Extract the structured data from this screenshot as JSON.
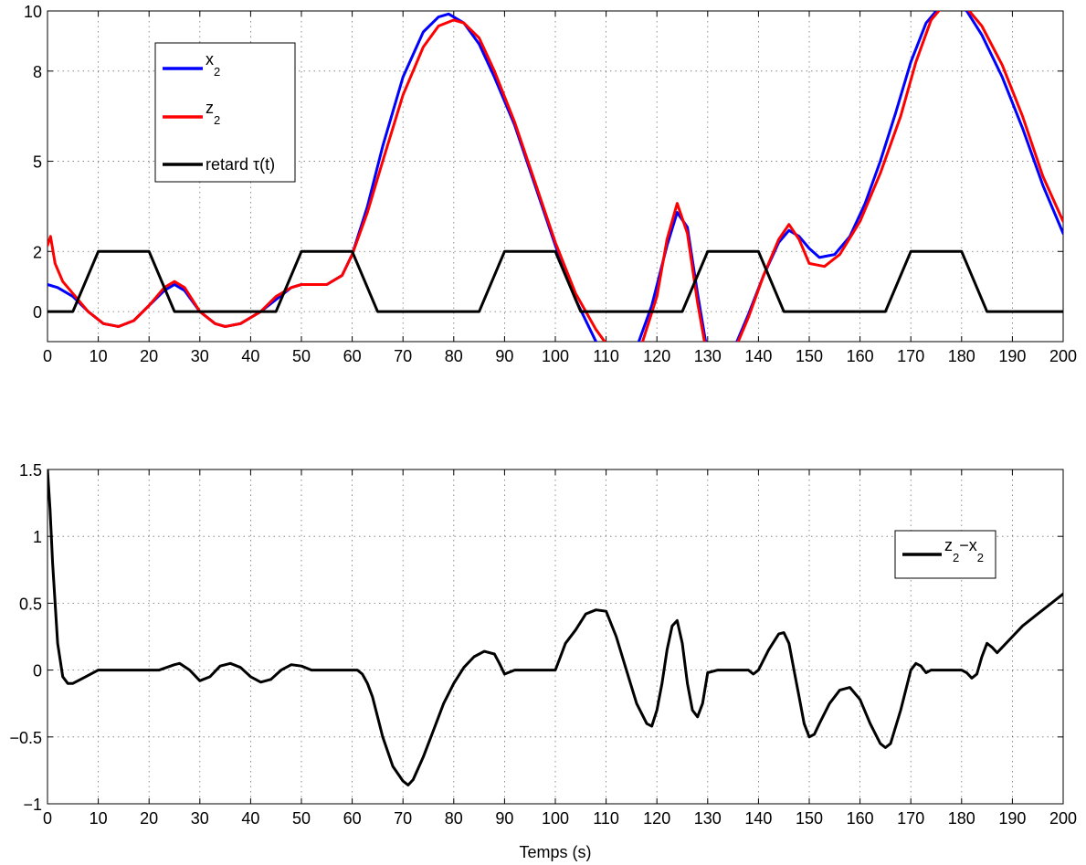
{
  "chart_data": [
    {
      "type": "line",
      "xlim": [
        0,
        200
      ],
      "ylim": [
        -1,
        10
      ],
      "x_ticks": [
        0,
        10,
        20,
        30,
        40,
        50,
        60,
        70,
        80,
        90,
        100,
        110,
        120,
        130,
        140,
        150,
        160,
        170,
        180,
        190,
        200
      ],
      "y_ticks": [
        0,
        2,
        5,
        8,
        10
      ],
      "grid": true,
      "legend_position": "top-left",
      "series": [
        {
          "name": "x_2",
          "label_main": "x",
          "label_sub": "2",
          "color": "#0000ff",
          "x": [
            0,
            2,
            5,
            8,
            11,
            14,
            17,
            20,
            23,
            25,
            27,
            30,
            33,
            35,
            38,
            42,
            45,
            48,
            50,
            55,
            58,
            60,
            63,
            66,
            70,
            74,
            77,
            79,
            82,
            85,
            88,
            92,
            96,
            100,
            104,
            108,
            111,
            113,
            116,
            119,
            122,
            124,
            126,
            128,
            130,
            132,
            135,
            138,
            141,
            144,
            146,
            148,
            150,
            152,
            155,
            158,
            161,
            164,
            167,
            170,
            173,
            176,
            178,
            181,
            184,
            188,
            192,
            196,
            200
          ],
          "y": [
            0.9,
            0.8,
            0.5,
            0.0,
            -0.4,
            -0.5,
            -0.3,
            0.2,
            0.7,
            0.9,
            0.7,
            0.0,
            -0.4,
            -0.5,
            -0.4,
            0.0,
            0.4,
            0.8,
            0.9,
            0.9,
            1.2,
            1.9,
            3.5,
            5.5,
            7.8,
            9.3,
            9.8,
            9.9,
            9.6,
            8.9,
            7.8,
            6.2,
            4.2,
            2.2,
            0.4,
            -1.0,
            -1.7,
            -1.75,
            -1.2,
            0.2,
            2.2,
            3.3,
            2.8,
            0.6,
            -1.4,
            -1.9,
            -1.3,
            -0.1,
            1.2,
            2.3,
            2.7,
            2.5,
            2.1,
            1.8,
            1.9,
            2.5,
            3.6,
            5.0,
            6.6,
            8.3,
            9.6,
            10.2,
            10.3,
            10.0,
            9.2,
            7.8,
            6.1,
            4.2,
            2.6
          ]
        },
        {
          "name": "z_2",
          "label_main": "z",
          "label_sub": "2",
          "color": "#ff0000",
          "x": [
            0,
            0.6,
            1.5,
            3,
            5,
            8,
            11,
            14,
            17,
            20,
            23,
            25,
            27,
            30,
            33,
            35,
            38,
            42,
            45,
            48,
            50,
            55,
            58,
            60,
            63,
            66,
            70,
            74,
            77,
            80,
            82,
            85,
            88,
            92,
            96,
            100,
            104,
            108,
            111,
            114,
            117,
            120,
            122,
            124,
            126,
            128,
            130,
            132,
            135,
            138,
            141,
            144,
            146,
            148,
            150,
            153,
            156,
            160,
            164,
            168,
            171,
            174,
            177,
            180,
            184,
            188,
            192,
            196,
            200
          ],
          "y": [
            2.2,
            2.5,
            1.6,
            1.0,
            0.6,
            0.0,
            -0.4,
            -0.5,
            -0.3,
            0.2,
            0.8,
            1.0,
            0.8,
            0.0,
            -0.4,
            -0.5,
            -0.4,
            0.0,
            0.5,
            0.8,
            0.9,
            0.9,
            1.2,
            1.9,
            3.3,
            5.0,
            7.2,
            8.8,
            9.5,
            9.7,
            9.6,
            9.1,
            8.0,
            6.3,
            4.3,
            2.3,
            0.6,
            -0.6,
            -1.3,
            -1.5,
            -1.1,
            0.5,
            2.4,
            3.6,
            2.6,
            0.3,
            -1.6,
            -2.0,
            -1.4,
            -0.2,
            1.2,
            2.4,
            2.9,
            2.4,
            1.6,
            1.5,
            1.9,
            3.0,
            4.6,
            6.5,
            8.3,
            9.7,
            10.3,
            10.3,
            9.5,
            8.2,
            6.5,
            4.5,
            3.0
          ]
        },
        {
          "name": "retard τ(t)",
          "label_main": "retard τ(t)",
          "label_sub": "",
          "color": "#000000",
          "x": [
            0,
            5,
            10,
            20,
            25,
            45,
            50,
            60,
            65,
            85,
            90,
            100,
            105,
            125,
            130,
            140,
            145,
            165,
            170,
            180,
            185,
            200
          ],
          "y": [
            0,
            0,
            2,
            2,
            0,
            0,
            2,
            2,
            0,
            0,
            2,
            2,
            0,
            0,
            2,
            2,
            0,
            0,
            2,
            2,
            0,
            0
          ]
        }
      ]
    },
    {
      "type": "line",
      "xlim": [
        0,
        200
      ],
      "ylim": [
        -1,
        1.5
      ],
      "x_ticks": [
        0,
        10,
        20,
        30,
        40,
        50,
        60,
        70,
        80,
        90,
        100,
        110,
        120,
        130,
        140,
        150,
        160,
        170,
        180,
        190,
        200
      ],
      "y_ticks": [
        -1,
        -0.5,
        0,
        0.5,
        1,
        1.5
      ],
      "xlabel": "Temps (s)",
      "grid": true,
      "legend_position": "right",
      "series": [
        {
          "name": "z_2-x_2",
          "label_parts": [
            "z",
            "2",
            "−x",
            "2"
          ],
          "color": "#000000",
          "x": [
            0,
            0.5,
            1,
            2,
            3,
            4,
            5,
            7,
            10,
            15,
            20,
            22,
            25,
            26,
            28,
            30,
            32,
            34,
            36,
            38,
            40,
            42,
            44,
            46,
            48,
            50,
            52,
            55,
            60,
            61,
            62,
            63,
            64,
            65,
            66,
            68,
            70,
            71,
            72,
            74,
            76,
            78,
            80,
            82,
            84,
            86,
            88,
            89,
            90,
            92,
            94,
            96,
            100,
            101,
            102,
            104,
            106,
            108,
            110,
            112,
            114,
            116,
            118,
            119,
            120,
            121,
            122,
            123,
            124,
            125,
            126,
            127,
            128,
            129,
            130,
            132,
            134,
            136,
            138,
            139,
            140,
            142,
            144,
            145,
            146,
            147,
            148,
            149,
            150,
            151,
            152,
            154,
            156,
            158,
            160,
            162,
            164,
            165,
            166,
            168,
            170,
            171,
            172,
            173,
            174,
            176,
            178,
            180,
            181,
            182,
            183,
            184,
            185,
            186,
            187,
            188,
            190,
            192,
            195,
            200
          ],
          "y": [
            1.5,
            1.2,
            0.8,
            0.2,
            -0.05,
            -0.1,
            -0.1,
            -0.06,
            0.0,
            0.0,
            0.0,
            0.0,
            0.04,
            0.05,
            0.0,
            -0.08,
            -0.05,
            0.03,
            0.05,
            0.02,
            -0.05,
            -0.09,
            -0.07,
            0.0,
            0.04,
            0.03,
            0.0,
            0.0,
            0.0,
            0.0,
            -0.03,
            -0.1,
            -0.2,
            -0.35,
            -0.5,
            -0.72,
            -0.83,
            -0.86,
            -0.82,
            -0.65,
            -0.45,
            -0.25,
            -0.1,
            0.02,
            0.1,
            0.14,
            0.12,
            0.05,
            -0.03,
            0.0,
            0.0,
            0.0,
            0.0,
            0.1,
            0.2,
            0.3,
            0.42,
            0.45,
            0.44,
            0.25,
            0.0,
            -0.25,
            -0.4,
            -0.42,
            -0.3,
            -0.1,
            0.15,
            0.33,
            0.37,
            0.2,
            -0.1,
            -0.3,
            -0.35,
            -0.25,
            -0.02,
            0.0,
            0.0,
            0.0,
            0.0,
            -0.03,
            0.0,
            0.15,
            0.27,
            0.28,
            0.2,
            0.0,
            -0.2,
            -0.4,
            -0.5,
            -0.48,
            -0.4,
            -0.25,
            -0.15,
            -0.13,
            -0.22,
            -0.4,
            -0.55,
            -0.58,
            -0.55,
            -0.3,
            0.0,
            0.05,
            0.03,
            -0.02,
            0.0,
            0.0,
            0.0,
            0.0,
            -0.02,
            -0.06,
            -0.03,
            0.1,
            0.2,
            0.17,
            0.13,
            0.17,
            0.25,
            0.33,
            0.42,
            0.57
          ]
        }
      ]
    }
  ]
}
